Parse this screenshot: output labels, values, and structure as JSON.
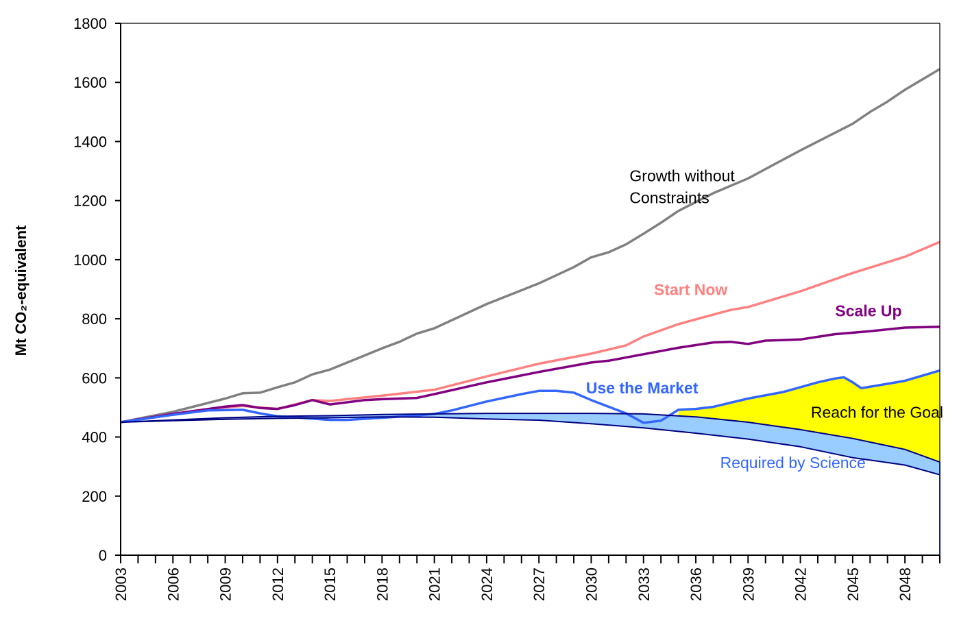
{
  "chart_data": {
    "type": "line",
    "title": "",
    "xlabel": "",
    "ylabel": "Mt CO₂-equivalent",
    "ylim": [
      0,
      1800
    ],
    "yticks": [
      0,
      200,
      400,
      600,
      800,
      1000,
      1200,
      1400,
      1600,
      1800
    ],
    "xlim": [
      2003,
      2050
    ],
    "xtick_labels": [
      "2003",
      "2006",
      "2009",
      "2012",
      "2015",
      "2018",
      "2021",
      "2024",
      "2027",
      "2030",
      "2033",
      "2036",
      "2039",
      "2042",
      "2045",
      "2048"
    ],
    "grid": false,
    "series": [
      {
        "name": "Growth without Constraints",
        "color": "#808080",
        "points": [
          [
            2003,
            450
          ],
          [
            2006,
            485
          ],
          [
            2009,
            530
          ],
          [
            2010,
            548
          ],
          [
            2011,
            550
          ],
          [
            2012,
            568
          ],
          [
            2013,
            585
          ],
          [
            2014,
            612
          ],
          [
            2015,
            628
          ],
          [
            2018,
            700
          ],
          [
            2019,
            722
          ],
          [
            2020,
            750
          ],
          [
            2021,
            768
          ],
          [
            2024,
            850
          ],
          [
            2027,
            920
          ],
          [
            2029,
            975
          ],
          [
            2030,
            1008
          ],
          [
            2031,
            1025
          ],
          [
            2032,
            1052
          ],
          [
            2033,
            1088
          ],
          [
            2034,
            1125
          ],
          [
            2035,
            1165
          ],
          [
            2036,
            1195
          ],
          [
            2037,
            1225
          ],
          [
            2039,
            1275
          ],
          [
            2042,
            1370
          ],
          [
            2045,
            1460
          ],
          [
            2046,
            1500
          ],
          [
            2047,
            1535
          ],
          [
            2048,
            1575
          ],
          [
            2050,
            1645
          ]
        ]
      },
      {
        "name": "Start Now",
        "color": "#ff8080",
        "points": [
          [
            2003,
            450
          ],
          [
            2006,
            478
          ],
          [
            2009,
            500
          ],
          [
            2010,
            505
          ],
          [
            2012,
            495
          ],
          [
            2014,
            525
          ],
          [
            2015,
            522
          ],
          [
            2018,
            540
          ],
          [
            2021,
            560
          ],
          [
            2024,
            605
          ],
          [
            2027,
            648
          ],
          [
            2030,
            682
          ],
          [
            2032,
            710
          ],
          [
            2033,
            740
          ],
          [
            2035,
            782
          ],
          [
            2038,
            830
          ],
          [
            2039,
            840
          ],
          [
            2042,
            893
          ],
          [
            2045,
            955
          ],
          [
            2048,
            1010
          ],
          [
            2050,
            1060
          ]
        ]
      },
      {
        "name": "Scale Up",
        "color": "#800080",
        "points": [
          [
            2003,
            450
          ],
          [
            2006,
            478
          ],
          [
            2009,
            503
          ],
          [
            2010,
            508
          ],
          [
            2011,
            498
          ],
          [
            2012,
            495
          ],
          [
            2013,
            508
          ],
          [
            2014,
            525
          ],
          [
            2015,
            510
          ],
          [
            2017,
            525
          ],
          [
            2018,
            528
          ],
          [
            2020,
            532
          ],
          [
            2021,
            545
          ],
          [
            2024,
            585
          ],
          [
            2027,
            620
          ],
          [
            2030,
            652
          ],
          [
            2031,
            658
          ],
          [
            2033,
            680
          ],
          [
            2035,
            702
          ],
          [
            2037,
            720
          ],
          [
            2038,
            722
          ],
          [
            2039,
            715
          ],
          [
            2040,
            726
          ],
          [
            2042,
            730
          ],
          [
            2044,
            748
          ],
          [
            2046,
            758
          ],
          [
            2048,
            770
          ],
          [
            2050,
            773
          ]
        ]
      },
      {
        "name": "Use the Market",
        "color": "#3366ff",
        "points": [
          [
            2003,
            450
          ],
          [
            2006,
            475
          ],
          [
            2008,
            490
          ],
          [
            2010,
            492
          ],
          [
            2011,
            480
          ],
          [
            2012,
            470
          ],
          [
            2014,
            462
          ],
          [
            2015,
            458
          ],
          [
            2016,
            458
          ],
          [
            2018,
            465
          ],
          [
            2020,
            473
          ],
          [
            2021,
            478
          ],
          [
            2022,
            490
          ],
          [
            2024,
            520
          ],
          [
            2026,
            545
          ],
          [
            2027,
            556
          ],
          [
            2028,
            556
          ],
          [
            2029,
            550
          ],
          [
            2030,
            525
          ],
          [
            2032,
            480
          ],
          [
            2033,
            448
          ],
          [
            2034,
            455
          ],
          [
            2035,
            492
          ],
          [
            2036,
            495
          ],
          [
            2037,
            502
          ],
          [
            2039,
            530
          ],
          [
            2041,
            552
          ],
          [
            2043,
            585
          ],
          [
            2044,
            598
          ],
          [
            2044.5,
            602
          ],
          [
            2045,
            585
          ],
          [
            2045.5,
            565
          ],
          [
            2046.5,
            575
          ],
          [
            2048,
            590
          ],
          [
            2050,
            625
          ]
        ]
      },
      {
        "name": "Reach for the Goal",
        "color": "#000080",
        "points": [
          [
            2003,
            450
          ],
          [
            2009,
            465
          ],
          [
            2012,
            470
          ],
          [
            2015,
            472
          ],
          [
            2018,
            476
          ],
          [
            2021,
            478
          ],
          [
            2024,
            480
          ],
          [
            2027,
            480
          ],
          [
            2030,
            480
          ],
          [
            2033,
            478
          ],
          [
            2036,
            468
          ],
          [
            2039,
            450
          ],
          [
            2042,
            425
          ],
          [
            2045,
            395
          ],
          [
            2048,
            358
          ],
          [
            2050,
            315
          ]
        ]
      },
      {
        "name": "Required by Science",
        "color": "#000080",
        "points": [
          [
            2003,
            450
          ],
          [
            2006,
            455
          ],
          [
            2009,
            460
          ],
          [
            2012,
            463
          ],
          [
            2015,
            465
          ],
          [
            2018,
            468
          ],
          [
            2021,
            467
          ],
          [
            2024,
            461
          ],
          [
            2027,
            457
          ],
          [
            2030,
            445
          ],
          [
            2033,
            431
          ],
          [
            2036,
            413
          ],
          [
            2039,
            393
          ],
          [
            2042,
            367
          ],
          [
            2045,
            330
          ],
          [
            2048,
            305
          ],
          [
            2050,
            272
          ]
        ]
      }
    ],
    "areas": [
      {
        "name": "Reach for the Goal",
        "color": "#ffff00",
        "from_year": 2035
      },
      {
        "name": "Required by Science",
        "color": "#99ccff",
        "from_year": 2003
      }
    ],
    "annotations": [
      {
        "lines": [
          "Growth without",
          "Constraints"
        ],
        "color": "#000000",
        "bold": false,
        "x": 2032.2,
        "y": 1265
      },
      {
        "lines": [
          "Start Now"
        ],
        "color": "#ff8080",
        "bold": true,
        "x": 2033.6,
        "y": 880
      },
      {
        "lines": [
          "Scale Up"
        ],
        "color": "#800080",
        "bold": true,
        "x": 2044.0,
        "y": 808
      },
      {
        "lines": [
          "Use the Market"
        ],
        "color": "#3366ff",
        "bold": true,
        "x": 2029.7,
        "y": 548
      },
      {
        "lines": [
          "Reach for the Goal"
        ],
        "color": "#000000",
        "bold": false,
        "x": 2042.6,
        "y": 465
      },
      {
        "lines": [
          "Required by Science"
        ],
        "color": "#3366ff",
        "bold": false,
        "x": 2037.4,
        "y": 295
      }
    ]
  }
}
